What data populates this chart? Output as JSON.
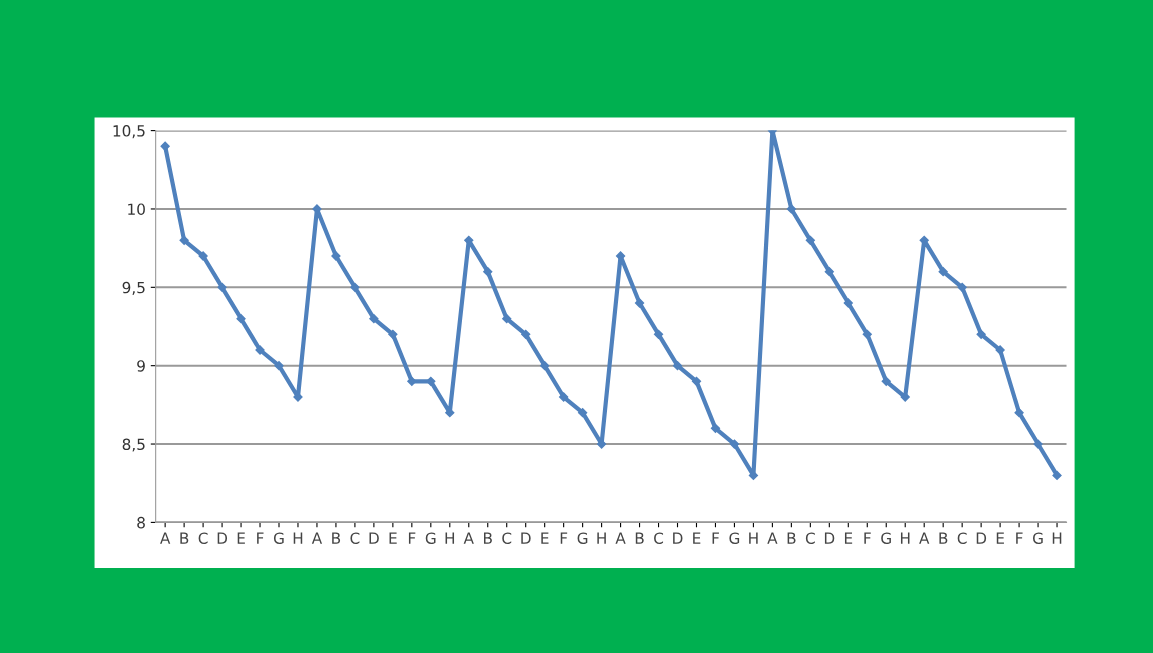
{
  "chart_data": {
    "type": "line",
    "categories": [
      "A",
      "B",
      "C",
      "D",
      "E",
      "F",
      "G",
      "H",
      "A",
      "B",
      "C",
      "D",
      "E",
      "F",
      "G",
      "H",
      "A",
      "B",
      "C",
      "D",
      "E",
      "F",
      "G",
      "H",
      "A",
      "B",
      "C",
      "D",
      "E",
      "F",
      "G",
      "H",
      "A",
      "B",
      "C",
      "D",
      "E",
      "F",
      "G",
      "H",
      "A",
      "B",
      "C",
      "D",
      "E",
      "F",
      "G",
      "H"
    ],
    "series": [
      {
        "color": "#4f81bd",
        "values": [
          10.4,
          9.8,
          9.7,
          9.5,
          9.3,
          9.1,
          9.0,
          8.8,
          10.0,
          9.7,
          9.5,
          9.3,
          9.2,
          8.9,
          8.9,
          8.7,
          9.8,
          9.6,
          9.3,
          9.2,
          9.0,
          8.8,
          8.7,
          8.5,
          9.7,
          9.4,
          9.2,
          9.0,
          8.9,
          8.6,
          8.5,
          8.3,
          10.5,
          10.0,
          9.8,
          9.6,
          9.4,
          9.2,
          8.9,
          8.8,
          9.8,
          9.6,
          9.5,
          9.2,
          9.1,
          8.7,
          8.5,
          8.3
        ]
      }
    ],
    "ylim": [
      8,
      10.5
    ],
    "yticks": [
      {
        "value": 8,
        "label": "8"
      },
      {
        "value": 8.5,
        "label": "8,5"
      },
      {
        "value": 9,
        "label": "9"
      },
      {
        "value": 9.5,
        "label": "9,5"
      },
      {
        "value": 10,
        "label": "10"
      },
      {
        "value": 10.5,
        "label": "10,5"
      }
    ],
    "grid": "y",
    "marker": "diamond",
    "line_style": "solid"
  }
}
